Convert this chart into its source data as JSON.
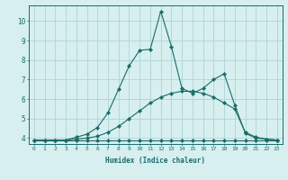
{
  "xlabel": "Humidex (Indice chaleur)",
  "bg_color": "#d7efef",
  "grid_color": "#b0d4d4",
  "line_color": "#1a6b6b",
  "xlim": [
    -0.5,
    23.5
  ],
  "ylim": [
    3.7,
    10.8
  ],
  "xticks": [
    0,
    1,
    2,
    3,
    4,
    5,
    6,
    7,
    8,
    9,
    10,
    11,
    12,
    13,
    14,
    15,
    16,
    17,
    18,
    19,
    20,
    21,
    22,
    23
  ],
  "yticks": [
    4,
    5,
    6,
    7,
    8,
    9,
    10
  ],
  "curve1_x": [
    0,
    1,
    2,
    3,
    4,
    5,
    6,
    7,
    8,
    9,
    10,
    11,
    12,
    13,
    14,
    15,
    16,
    17,
    18,
    19,
    20,
    21,
    22,
    23
  ],
  "curve1_y": [
    3.9,
    3.9,
    3.9,
    3.9,
    3.9,
    3.9,
    3.9,
    3.9,
    3.9,
    3.9,
    3.9,
    3.9,
    3.9,
    3.9,
    3.9,
    3.9,
    3.9,
    3.9,
    3.9,
    3.9,
    3.9,
    3.9,
    3.9,
    3.9
  ],
  "curve2_x": [
    0,
    1,
    2,
    3,
    4,
    5,
    6,
    7,
    8,
    9,
    10,
    11,
    12,
    13,
    14,
    15,
    16,
    17,
    18,
    19,
    20,
    21,
    22,
    23
  ],
  "curve2_y": [
    3.9,
    3.9,
    3.9,
    3.9,
    3.95,
    4.0,
    4.1,
    4.3,
    4.6,
    5.0,
    5.4,
    5.8,
    6.1,
    6.3,
    6.4,
    6.4,
    6.3,
    6.1,
    5.8,
    5.5,
    4.3,
    4.05,
    3.95,
    3.9
  ],
  "curve3_x": [
    0,
    1,
    2,
    3,
    4,
    5,
    6,
    7,
    8,
    9,
    10,
    11,
    12,
    13,
    14,
    15,
    16,
    17,
    18,
    19,
    20,
    21,
    22,
    23
  ],
  "curve3_y": [
    3.9,
    3.9,
    3.9,
    3.9,
    4.05,
    4.2,
    4.55,
    5.3,
    6.5,
    7.7,
    8.5,
    8.55,
    10.5,
    8.7,
    6.55,
    6.3,
    6.55,
    7.0,
    7.3,
    5.7,
    4.25,
    4.0,
    3.95,
    3.9
  ]
}
